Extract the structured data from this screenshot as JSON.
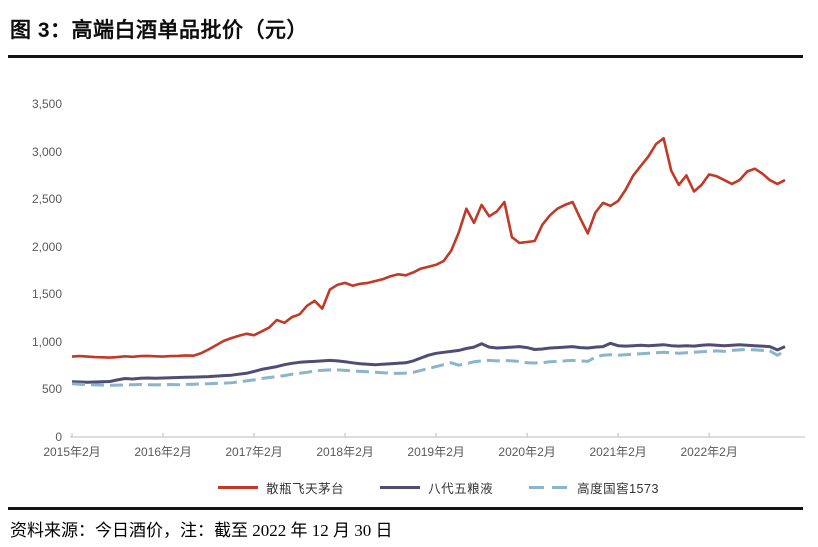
{
  "header": {
    "title": "图 3：高端白酒单品批价（元）"
  },
  "footer": {
    "note": "资料来源：今日酒价，注：截至 2022 年 12 月 30 日"
  },
  "colors": {
    "maotai_red": "#c13a27",
    "wuliangye_navy": "#4f4d73",
    "guojiao_blue": "#8ab5cd",
    "axis_line": "#c9c9c9",
    "axis_text": "#595959",
    "rule_black": "#141414"
  },
  "chart_data": {
    "type": "line",
    "title": "图 3：高端白酒单品批价（元）",
    "xlabel": "",
    "ylabel": "",
    "x_unit": "month",
    "x_range": [
      "2015年2月",
      "2022年12月"
    ],
    "x_tick_labels": [
      "2015年2月",
      "2016年2月",
      "2017年2月",
      "2018年2月",
      "2019年2月",
      "2020年2月",
      "2021年2月",
      "2022年2月"
    ],
    "x_tick_month_indexes": [
      0,
      12,
      24,
      36,
      48,
      60,
      72,
      84
    ],
    "ylim": [
      0,
      3500
    ],
    "y_tick_values": [
      3500,
      3000,
      2500,
      2000,
      1500,
      1000,
      500,
      0
    ],
    "y_tick_labels": [
      "3,500",
      "3,000",
      "2,500",
      "2,000",
      "1,500",
      "1,000",
      "500",
      "0"
    ],
    "grid": false,
    "legend_position": "bottom",
    "series": [
      {
        "name": "散瓶飞天茅台",
        "color": "#c13a27",
        "style": "solid",
        "values": [
          845,
          850,
          845,
          840,
          838,
          835,
          840,
          848,
          843,
          850,
          852,
          848,
          845,
          850,
          852,
          858,
          855,
          880,
          920,
          965,
          1010,
          1040,
          1065,
          1085,
          1070,
          1110,
          1150,
          1230,
          1200,
          1260,
          1290,
          1380,
          1430,
          1350,
          1550,
          1600,
          1620,
          1590,
          1610,
          1620,
          1640,
          1660,
          1690,
          1710,
          1700,
          1730,
          1770,
          1790,
          1810,
          1850,
          1960,
          2150,
          2400,
          2250,
          2440,
          2320,
          2370,
          2470,
          2100,
          2040,
          2050,
          2060,
          2230,
          2330,
          2400,
          2440,
          2470,
          2300,
          2140,
          2360,
          2460,
          2430,
          2480,
          2600,
          2750,
          2850,
          2950,
          3080,
          3140,
          2800,
          2650,
          2750,
          2580,
          2650,
          2760,
          2740,
          2700,
          2660,
          2700,
          2790,
          2820,
          2770,
          2700,
          2660,
          2700
        ]
      },
      {
        "name": "八代五粮液",
        "color": "#4f4d73",
        "style": "solid",
        "values": [
          580,
          578,
          575,
          578,
          580,
          583,
          600,
          615,
          610,
          618,
          620,
          618,
          620,
          622,
          625,
          628,
          630,
          632,
          635,
          640,
          645,
          650,
          660,
          670,
          690,
          710,
          725,
          740,
          760,
          775,
          785,
          790,
          795,
          800,
          805,
          800,
          790,
          780,
          770,
          765,
          760,
          765,
          770,
          775,
          780,
          800,
          830,
          860,
          880,
          890,
          900,
          910,
          930,
          945,
          980,
          945,
          935,
          940,
          945,
          950,
          940,
          920,
          925,
          935,
          940,
          945,
          950,
          940,
          935,
          945,
          950,
          985,
          960,
          955,
          960,
          965,
          960,
          965,
          970,
          960,
          955,
          960,
          955,
          965,
          970,
          965,
          960,
          965,
          970,
          965,
          960,
          955,
          950,
          915,
          950
        ]
      },
      {
        "name": "高度国窖1573",
        "color": "#8ab5cd",
        "style": "dashed",
        "values": [
          560,
          555,
          550,
          548,
          545,
          542,
          545,
          548,
          550,
          552,
          550,
          548,
          550,
          552,
          550,
          553,
          555,
          558,
          560,
          563,
          565,
          570,
          580,
          590,
          600,
          615,
          625,
          635,
          645,
          660,
          670,
          680,
          695,
          700,
          705,
          705,
          700,
          695,
          690,
          685,
          680,
          675,
          670,
          668,
          672,
          680,
          700,
          720,
          740,
          760,
          780,
          755,
          770,
          790,
          800,
          805,
          800,
          805,
          800,
          795,
          780,
          778,
          782,
          790,
          795,
          800,
          805,
          800,
          795,
          840,
          860,
          865,
          860,
          865,
          870,
          875,
          880,
          885,
          890,
          885,
          880,
          885,
          890,
          895,
          900,
          905,
          900,
          910,
          915,
          920,
          915,
          910,
          905,
          860,
          905
        ]
      }
    ]
  }
}
